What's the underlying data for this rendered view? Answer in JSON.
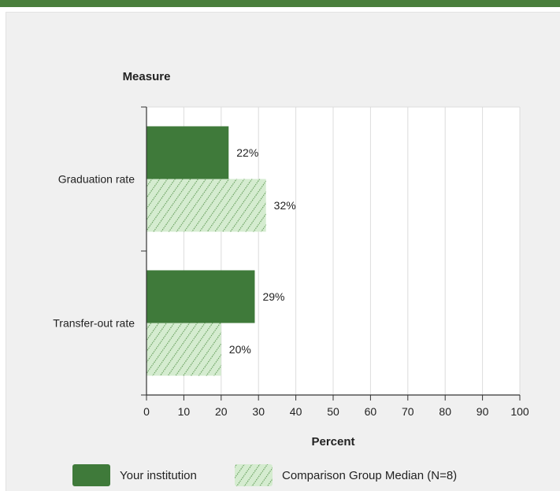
{
  "colors": {
    "topbar": "#4a7f3c",
    "your_institution": "#3f7a3a",
    "comparison_fill": "#d5ecd0",
    "comparison_hatch": "#5f9a55",
    "plot_bg": "#ffffff",
    "grid": "#dcdcdc"
  },
  "chart_data": {
    "type": "bar",
    "orientation": "horizontal",
    "categories": [
      "Graduation rate",
      "Transfer-out rate"
    ],
    "series": [
      {
        "name": "Your institution",
        "values": [
          22,
          29
        ],
        "labels": [
          "22%",
          "29%"
        ],
        "pattern": "solid"
      },
      {
        "name": "Comparison Group Median (N=8)",
        "values": [
          32,
          20
        ],
        "labels": [
          "32%",
          "20%"
        ],
        "pattern": "hatched"
      }
    ],
    "category_axis_title": "Measure",
    "xlabel": "Percent",
    "xlim": [
      0,
      100
    ],
    "xticks": [
      0,
      10,
      20,
      30,
      40,
      50,
      60,
      70,
      80,
      90,
      100
    ],
    "grid": true,
    "legend_position": "bottom"
  }
}
